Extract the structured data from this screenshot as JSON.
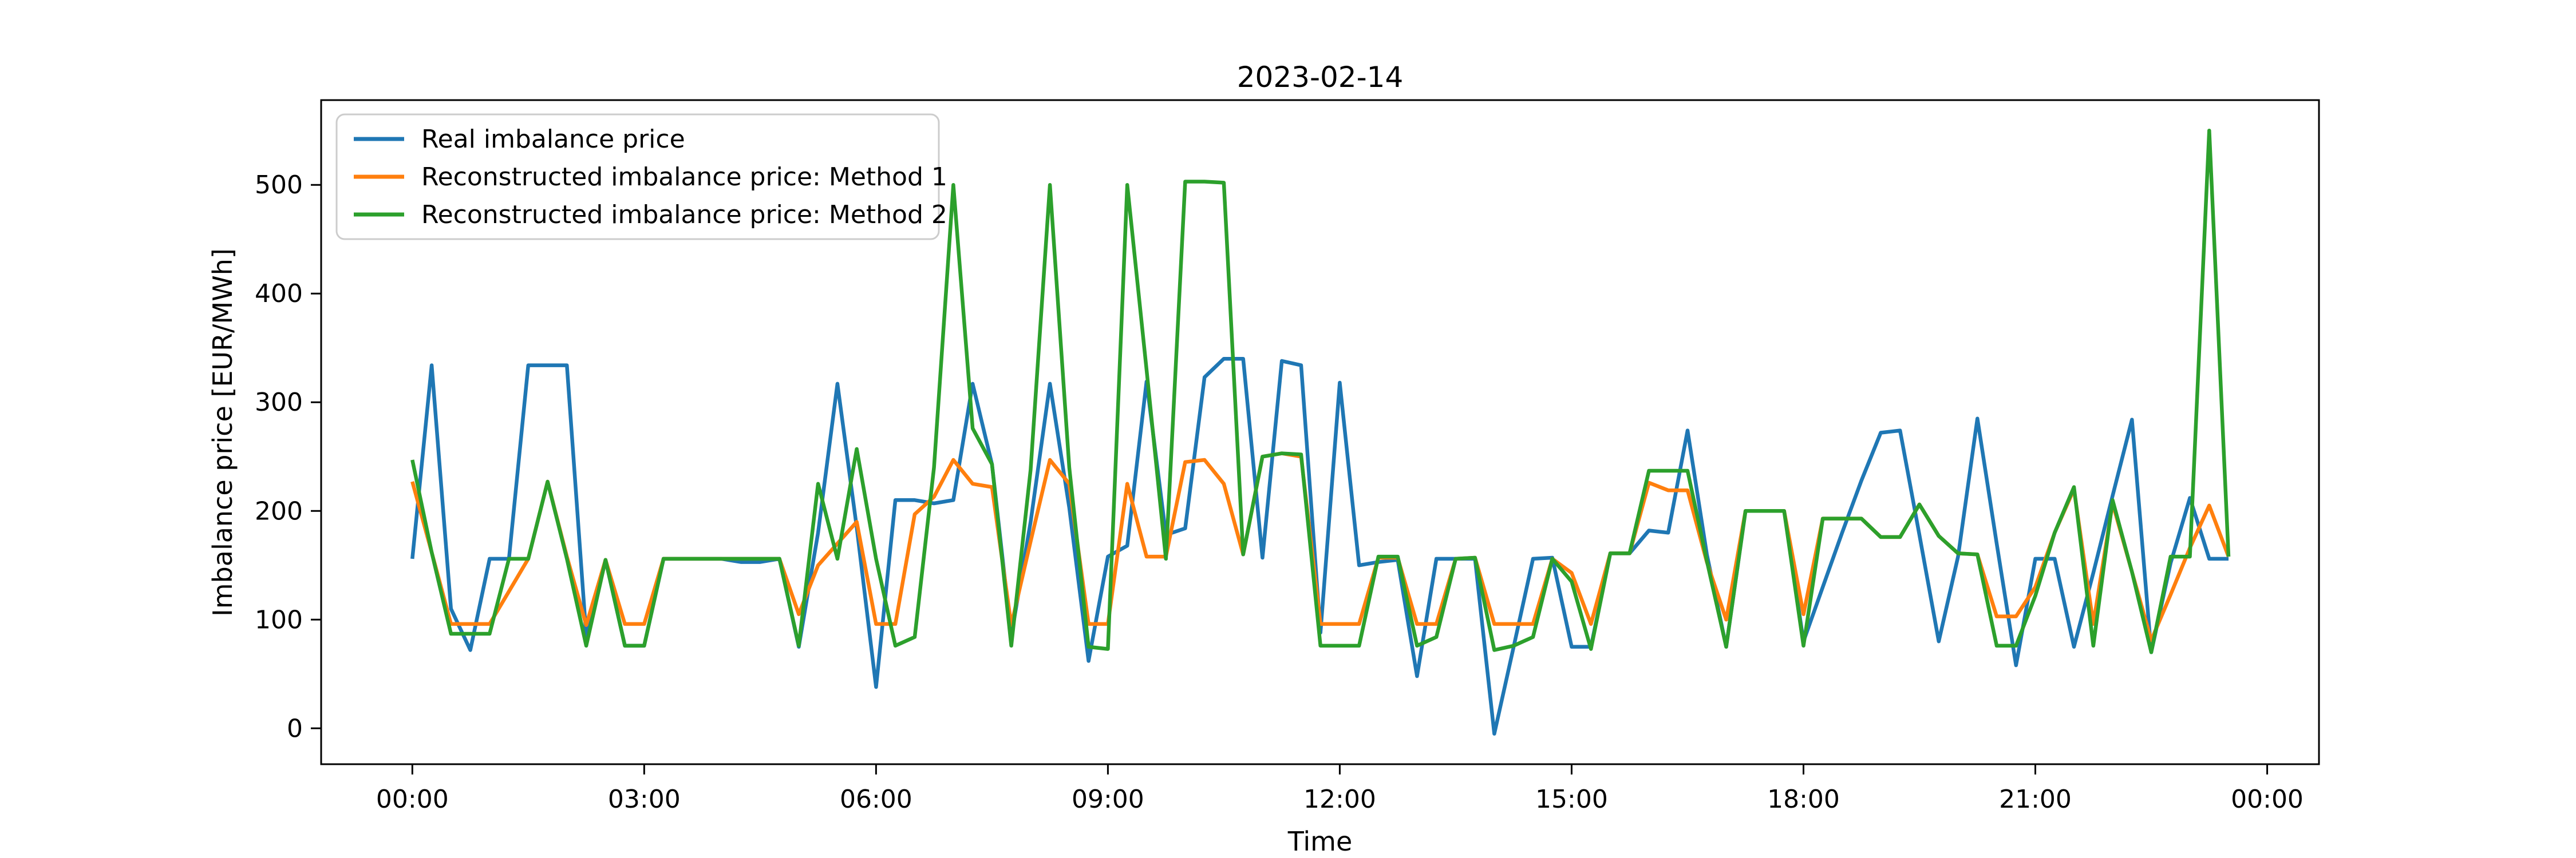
{
  "chart_data": {
    "type": "line",
    "title": "2023-02-14",
    "xlabel": "Time",
    "ylabel": "Imbalance price [EUR/MWh]",
    "background_color": "#ffffff",
    "grid": false,
    "legend_position": "upper left",
    "xlim_hours": [
      -1.18,
      24.67
    ],
    "ylim": [
      -33,
      578
    ],
    "yticks": [
      0,
      100,
      200,
      300,
      400,
      500
    ],
    "xticks": [
      {
        "hour": 0,
        "label": "00:00"
      },
      {
        "hour": 3,
        "label": "03:00"
      },
      {
        "hour": 6,
        "label": "06:00"
      },
      {
        "hour": 9,
        "label": "09:00"
      },
      {
        "hour": 12,
        "label": "12:00"
      },
      {
        "hour": 15,
        "label": "15:00"
      },
      {
        "hour": 18,
        "label": "18:00"
      },
      {
        "hour": 21,
        "label": "21:00"
      },
      {
        "hour": 24,
        "label": "00:00"
      }
    ],
    "x_categories": [
      "00:00",
      "00:15",
      "00:30",
      "00:45",
      "01:00",
      "01:15",
      "01:30",
      "01:45",
      "02:00",
      "02:15",
      "02:30",
      "02:45",
      "03:00",
      "03:15",
      "03:30",
      "03:45",
      "04:00",
      "04:15",
      "04:30",
      "04:45",
      "05:00",
      "05:15",
      "05:30",
      "05:45",
      "06:00",
      "06:15",
      "06:30",
      "06:45",
      "07:00",
      "07:15",
      "07:30",
      "07:45",
      "08:00",
      "08:15",
      "08:30",
      "08:45",
      "09:00",
      "09:15",
      "09:30",
      "09:45",
      "10:00",
      "10:15",
      "10:30",
      "10:45",
      "11:00",
      "11:15",
      "11:30",
      "11:45",
      "12:00",
      "12:15",
      "12:30",
      "12:45",
      "13:00",
      "13:15",
      "13:30",
      "13:45",
      "14:00",
      "14:15",
      "14:30",
      "14:45",
      "15:00",
      "15:15",
      "15:30",
      "15:45",
      "16:00",
      "16:15",
      "16:30",
      "16:45",
      "17:00",
      "17:15",
      "17:30",
      "17:45",
      "18:00",
      "18:15",
      "18:30",
      "18:45",
      "19:00",
      "19:15",
      "19:30",
      "19:45",
      "20:00",
      "20:15",
      "20:30",
      "20:45",
      "21:00",
      "21:15",
      "21:30",
      "21:45",
      "22:00",
      "22:15",
      "22:30",
      "22:45",
      "23:00",
      "23:15",
      "23:30"
    ],
    "series": [
      {
        "name": "Real imbalance price",
        "color": "#1f77b4",
        "values": [
          156,
          334,
          110,
          72,
          156,
          156,
          334,
          334,
          334,
          85,
          155,
          76,
          76,
          156,
          156,
          156,
          156,
          153,
          153,
          156,
          75,
          180,
          317,
          185,
          38,
          210,
          210,
          207,
          210,
          317,
          243,
          85,
          190,
          317,
          203,
          62,
          158,
          168,
          319,
          178,
          184,
          323,
          340,
          340,
          157,
          338,
          334,
          88,
          318,
          150,
          153,
          155,
          48,
          156,
          156,
          156,
          -5,
          75,
          156,
          157,
          75,
          75,
          161,
          161,
          182,
          180,
          274,
          160,
          75,
          200,
          200,
          200,
          80,
          130,
          180,
          228,
          272,
          274,
          178,
          80,
          158,
          285,
          170,
          58,
          156,
          156,
          75,
          143,
          214,
          284,
          70,
          152,
          212,
          156,
          156
        ]
      },
      {
        "name": "Reconstructed imbalance price: Method 1",
        "color": "#ff7f0e",
        "values": [
          227,
          162,
          96,
          96,
          96,
          126,
          156,
          227,
          158,
          95,
          155,
          96,
          96,
          156,
          156,
          156,
          156,
          156,
          156,
          156,
          105,
          150,
          170,
          190,
          96,
          96,
          197,
          213,
          247,
          225,
          222,
          95,
          172,
          247,
          225,
          96,
          96,
          225,
          158,
          158,
          245,
          247,
          225,
          160,
          250,
          253,
          250,
          96,
          96,
          96,
          157,
          157,
          96,
          96,
          156,
          157,
          96,
          96,
          96,
          156,
          143,
          96,
          161,
          161,
          226,
          219,
          219,
          153,
          100,
          200,
          200,
          200,
          105,
          193,
          193,
          193,
          176,
          176,
          206,
          177,
          161,
          160,
          103,
          103,
          130,
          180,
          220,
          96,
          207,
          144,
          81,
          123,
          166,
          205,
          158
        ]
      },
      {
        "name": "Reconstructed imbalance price: Method 2",
        "color": "#2ca02c",
        "values": [
          247,
          162,
          87,
          87,
          87,
          156,
          156,
          227,
          156,
          76,
          155,
          76,
          76,
          156,
          156,
          156,
          156,
          156,
          156,
          156,
          76,
          225,
          156,
          257,
          156,
          76,
          84,
          240,
          500,
          276,
          243,
          76,
          238,
          500,
          240,
          75,
          73,
          500,
          330,
          156,
          503,
          503,
          502,
          160,
          250,
          253,
          252,
          76,
          76,
          76,
          158,
          158,
          76,
          84,
          156,
          157,
          72,
          76,
          84,
          156,
          135,
          73,
          161,
          161,
          237,
          237,
          237,
          154,
          75,
          200,
          200,
          200,
          76,
          193,
          193,
          193,
          176,
          176,
          206,
          177,
          161,
          160,
          76,
          76,
          122,
          180,
          222,
          76,
          210,
          144,
          70,
          158,
          158,
          550,
          158
        ]
      }
    ]
  }
}
